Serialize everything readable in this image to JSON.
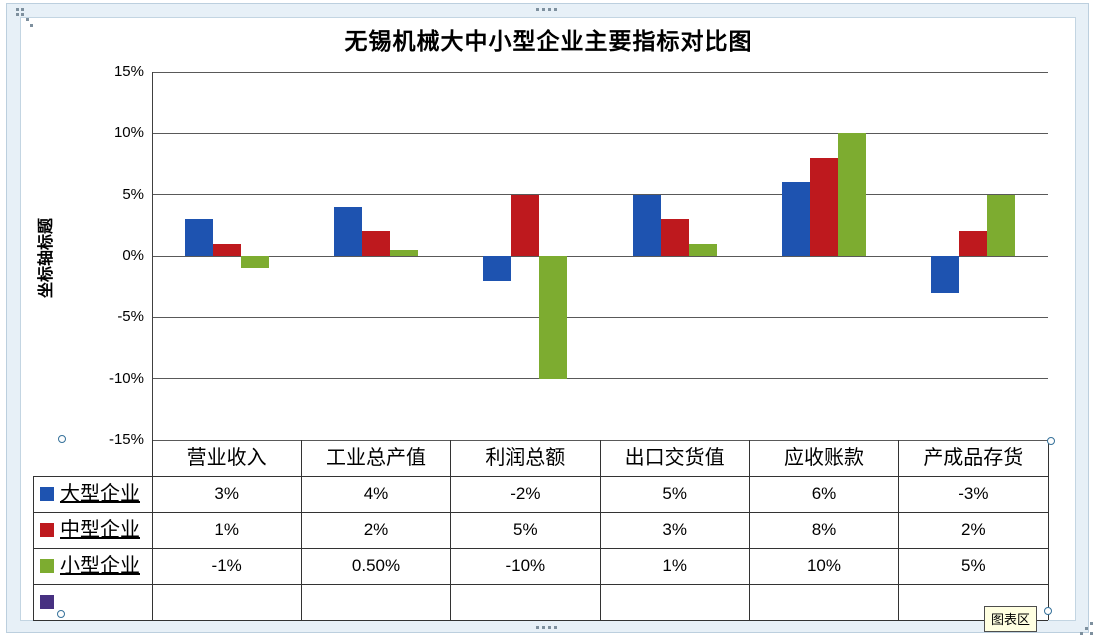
{
  "tooltip": {
    "label": "图表区"
  },
  "chart_data": {
    "type": "bar",
    "title": "无锡机械大中小型企业主要指标对比图",
    "ylabel": "坐标轴标题",
    "xlabel": "",
    "categories": [
      "营业收入",
      "工业总产值",
      "利润总额",
      "出口交货值",
      "应收账款",
      "产成品存货"
    ],
    "series": [
      {
        "name": "大型企业",
        "color": "#1e53b0",
        "values": [
          3,
          4,
          -2,
          5,
          6,
          -3
        ],
        "display": [
          "3%",
          "4%",
          "-2%",
          "5%",
          "6%",
          "-3%"
        ]
      },
      {
        "name": "中型企业",
        "color": "#be191e",
        "values": [
          1,
          2,
          5,
          3,
          8,
          2
        ],
        "display": [
          "1%",
          "2%",
          "5%",
          "3%",
          "8%",
          "2%"
        ]
      },
      {
        "name": "小型企业",
        "color": "#7dac30",
        "values": [
          -1,
          0.5,
          -10,
          1,
          10,
          5
        ],
        "display": [
          "-1%",
          "0.50%",
          "-10%",
          "1%",
          "10%",
          "5%"
        ]
      },
      {
        "name": "",
        "color": "#473081",
        "values": [],
        "display": [
          "",
          "",
          "",
          "",
          "",
          ""
        ]
      }
    ],
    "ylim": [
      -15,
      15
    ],
    "ytick_values": [
      15,
      10,
      5,
      0,
      -5,
      -10,
      -15
    ],
    "ytick_labels": [
      "15%",
      "10%",
      "5%",
      "0%",
      "-5%",
      "-10%",
      "-15%"
    ],
    "grid": true,
    "legend_position": "data-table-left",
    "data_table_shown": true
  }
}
